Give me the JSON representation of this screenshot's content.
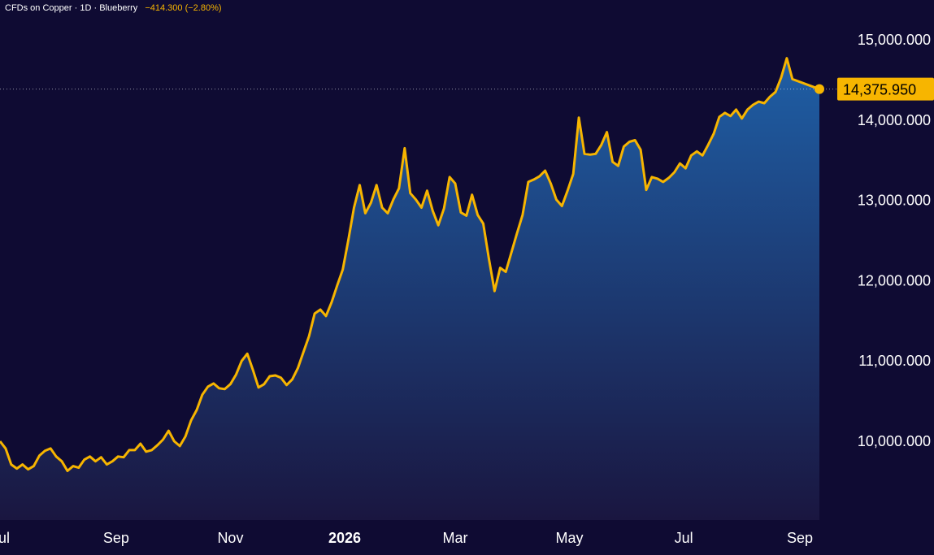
{
  "legend": {
    "instrument": "CFDs on Copper",
    "sep1": "·",
    "interval": "1D",
    "sep2": "·",
    "theme": "Blueberry",
    "change": "−414.300 (−2.80%)"
  },
  "last_price_label": "14,375.950",
  "colors": {
    "background": "#0f0b33",
    "line": "#f7b500",
    "area_top": "#1f5fa6",
    "area_bottom": "#1a1640",
    "text": "#ffffff",
    "price_tag": "#f7b500"
  },
  "chart_data": {
    "type": "area",
    "title": "CFDs on Copper · 1D · Blueberry",
    "xlabel": "",
    "ylabel": "",
    "ylim": [
      9200,
      15400
    ],
    "y_ticks": [
      10000,
      11000,
      12000,
      13000,
      14000,
      15000
    ],
    "y_tick_labels": [
      "10,000.000",
      "11,000.000",
      "12,000.000",
      "13,000.000",
      "14,000.000",
      "15,000.000"
    ],
    "x_ticks": [
      {
        "label": "Jul",
        "date": "2025-07-01",
        "bold": false
      },
      {
        "label": "Sep",
        "date": "2025-09-01",
        "bold": false
      },
      {
        "label": "Nov",
        "date": "2025-11-01",
        "bold": false
      },
      {
        "label": "2026",
        "date": "2026-01-01",
        "bold": true
      },
      {
        "label": "Mar",
        "date": "2026-03-01",
        "bold": false
      },
      {
        "label": "May",
        "date": "2026-05-01",
        "bold": false
      },
      {
        "label": "Jul",
        "date": "2026-07-01",
        "bold": false
      },
      {
        "label": "Sep",
        "date": "2026-09-01",
        "bold": false
      }
    ],
    "series": [
      {
        "points": [
          [
            "2025-07-01",
            9990
          ],
          [
            "2025-07-04",
            9900
          ],
          [
            "2025-07-07",
            9700
          ],
          [
            "2025-07-10",
            9650
          ],
          [
            "2025-07-13",
            9700
          ],
          [
            "2025-07-16",
            9640
          ],
          [
            "2025-07-19",
            9680
          ],
          [
            "2025-07-22",
            9810
          ],
          [
            "2025-07-25",
            9870
          ],
          [
            "2025-07-28",
            9900
          ],
          [
            "2025-07-31",
            9800
          ],
          [
            "2025-08-03",
            9740
          ],
          [
            "2025-08-06",
            9620
          ],
          [
            "2025-08-09",
            9680
          ],
          [
            "2025-08-12",
            9660
          ],
          [
            "2025-08-15",
            9760
          ],
          [
            "2025-08-18",
            9800
          ],
          [
            "2025-08-21",
            9740
          ],
          [
            "2025-08-24",
            9790
          ],
          [
            "2025-08-27",
            9700
          ],
          [
            "2025-08-30",
            9740
          ],
          [
            "2025-09-02",
            9800
          ],
          [
            "2025-09-05",
            9790
          ],
          [
            "2025-09-08",
            9880
          ],
          [
            "2025-09-11",
            9880
          ],
          [
            "2025-09-14",
            9960
          ],
          [
            "2025-09-17",
            9860
          ],
          [
            "2025-09-20",
            9880
          ],
          [
            "2025-09-23",
            9940
          ],
          [
            "2025-09-26",
            10010
          ],
          [
            "2025-09-29",
            10120
          ],
          [
            "2025-10-02",
            9990
          ],
          [
            "2025-10-05",
            9930
          ],
          [
            "2025-10-08",
            10050
          ],
          [
            "2025-10-11",
            10250
          ],
          [
            "2025-10-14",
            10380
          ],
          [
            "2025-10-17",
            10570
          ],
          [
            "2025-10-20",
            10670
          ],
          [
            "2025-10-23",
            10710
          ],
          [
            "2025-10-26",
            10650
          ],
          [
            "2025-10-29",
            10640
          ],
          [
            "2025-11-01",
            10700
          ],
          [
            "2025-11-04",
            10820
          ],
          [
            "2025-11-07",
            10990
          ],
          [
            "2025-11-10",
            11080
          ],
          [
            "2025-11-13",
            10880
          ],
          [
            "2025-11-16",
            10660
          ],
          [
            "2025-11-19",
            10700
          ],
          [
            "2025-11-22",
            10800
          ],
          [
            "2025-11-25",
            10810
          ],
          [
            "2025-11-28",
            10780
          ],
          [
            "2025-12-01",
            10690
          ],
          [
            "2025-12-04",
            10760
          ],
          [
            "2025-12-07",
            10900
          ],
          [
            "2025-12-10",
            11100
          ],
          [
            "2025-12-13",
            11300
          ],
          [
            "2025-12-16",
            11580
          ],
          [
            "2025-12-19",
            11630
          ],
          [
            "2025-12-22",
            11550
          ],
          [
            "2025-12-25",
            11720
          ],
          [
            "2025-12-28",
            11930
          ],
          [
            "2025-12-31",
            12130
          ],
          [
            "2026-01-03",
            12500
          ],
          [
            "2026-01-06",
            12900
          ],
          [
            "2026-01-09",
            13180
          ],
          [
            "2026-01-12",
            12830
          ],
          [
            "2026-01-15",
            12960
          ],
          [
            "2026-01-18",
            13180
          ],
          [
            "2026-01-21",
            12900
          ],
          [
            "2026-01-24",
            12830
          ],
          [
            "2026-01-27",
            13000
          ],
          [
            "2026-01-30",
            13140
          ],
          [
            "2026-02-02",
            13640
          ],
          [
            "2026-02-05",
            13080
          ],
          [
            "2026-02-08",
            13000
          ],
          [
            "2026-02-11",
            12900
          ],
          [
            "2026-02-14",
            13110
          ],
          [
            "2026-02-17",
            12860
          ],
          [
            "2026-02-20",
            12680
          ],
          [
            "2026-02-23",
            12890
          ],
          [
            "2026-02-26",
            13280
          ],
          [
            "2026-03-01",
            13200
          ],
          [
            "2026-03-04",
            12840
          ],
          [
            "2026-03-07",
            12800
          ],
          [
            "2026-03-10",
            13060
          ],
          [
            "2026-03-13",
            12810
          ],
          [
            "2026-03-16",
            12700
          ],
          [
            "2026-03-19",
            12260
          ],
          [
            "2026-03-22",
            11860
          ],
          [
            "2026-03-25",
            12150
          ],
          [
            "2026-03-28",
            12100
          ],
          [
            "2026-03-31",
            12340
          ],
          [
            "2026-04-03",
            12580
          ],
          [
            "2026-04-06",
            12810
          ],
          [
            "2026-04-09",
            13220
          ],
          [
            "2026-04-12",
            13250
          ],
          [
            "2026-04-15",
            13290
          ],
          [
            "2026-04-18",
            13360
          ],
          [
            "2026-04-21",
            13200
          ],
          [
            "2026-04-24",
            13000
          ],
          [
            "2026-04-27",
            12920
          ],
          [
            "2026-04-30",
            13110
          ],
          [
            "2026-05-03",
            13320
          ],
          [
            "2026-05-06",
            14020
          ],
          [
            "2026-05-09",
            13570
          ],
          [
            "2026-05-12",
            13560
          ],
          [
            "2026-05-15",
            13570
          ],
          [
            "2026-05-18",
            13680
          ],
          [
            "2026-05-21",
            13840
          ],
          [
            "2026-05-24",
            13470
          ],
          [
            "2026-05-27",
            13420
          ],
          [
            "2026-05-30",
            13660
          ],
          [
            "2026-06-02",
            13720
          ],
          [
            "2026-06-05",
            13740
          ],
          [
            "2026-06-08",
            13620
          ],
          [
            "2026-06-11",
            13120
          ],
          [
            "2026-06-14",
            13280
          ],
          [
            "2026-06-17",
            13260
          ],
          [
            "2026-06-20",
            13220
          ],
          [
            "2026-06-23",
            13270
          ],
          [
            "2026-06-26",
            13340
          ],
          [
            "2026-06-29",
            13450
          ],
          [
            "2026-07-02",
            13390
          ],
          [
            "2026-07-05",
            13550
          ],
          [
            "2026-07-08",
            13600
          ],
          [
            "2026-07-11",
            13550
          ],
          [
            "2026-07-14",
            13680
          ],
          [
            "2026-07-17",
            13820
          ],
          [
            "2026-07-20",
            14030
          ],
          [
            "2026-07-23",
            14080
          ],
          [
            "2026-07-26",
            14040
          ],
          [
            "2026-07-29",
            14120
          ],
          [
            "2026-08-01",
            14010
          ],
          [
            "2026-08-04",
            14120
          ],
          [
            "2026-08-07",
            14180
          ],
          [
            "2026-08-10",
            14220
          ],
          [
            "2026-08-13",
            14200
          ],
          [
            "2026-08-16",
            14280
          ],
          [
            "2026-08-19",
            14340
          ],
          [
            "2026-08-22",
            14520
          ],
          [
            "2026-08-25",
            14760
          ],
          [
            "2026-08-28",
            14500
          ],
          [
            "2026-09-01",
            14375.95
          ]
        ]
      }
    ],
    "last_value": 14375.95,
    "grid": false,
    "legend_position": "top-left"
  }
}
